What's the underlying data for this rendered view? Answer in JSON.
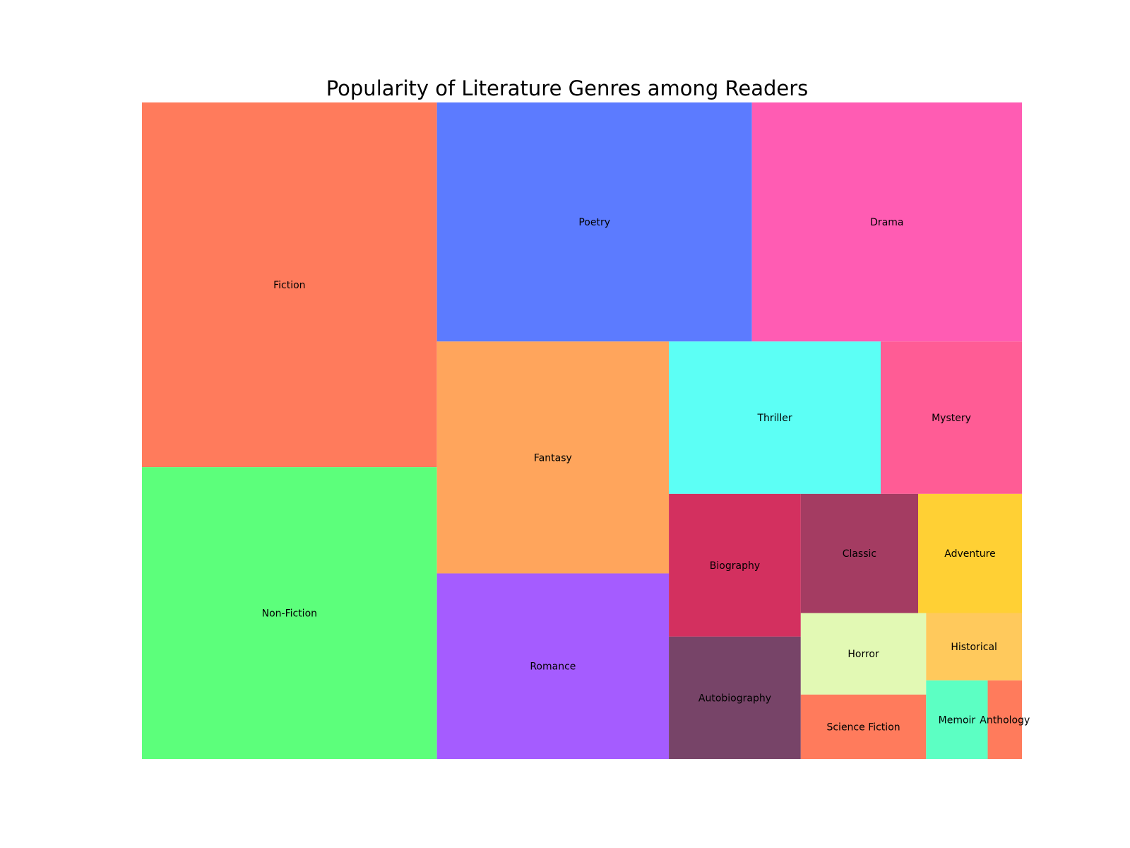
{
  "chart_data": {
    "type": "treemap",
    "title": "Popularity of Literature Genres among Readers",
    "cells": [
      {
        "label": "Fiction",
        "value": 20,
        "color": "#ff7b5c"
      },
      {
        "label": "Non-Fiction",
        "value": 16,
        "color": "#5cff7b"
      },
      {
        "label": "Poetry",
        "value": 14,
        "color": "#5c7bff"
      },
      {
        "label": "Drama",
        "value": 12,
        "color": "#ff5cb3"
      },
      {
        "label": "Fantasy",
        "value": 10,
        "color": "#ffa55c"
      },
      {
        "label": "Romance",
        "value": 8,
        "color": "#a55cff"
      },
      {
        "label": "Thriller",
        "value": 6,
        "color": "#5cfff5"
      },
      {
        "label": "Mystery",
        "value": 4,
        "color": "#ff5c95"
      },
      {
        "label": "Biography",
        "value": 3.5,
        "color": "#d3305f"
      },
      {
        "label": "Autobiography",
        "value": 3,
        "color": "#774468"
      },
      {
        "label": "Classic",
        "value": 2.6,
        "color": "#a43c62"
      },
      {
        "label": "Adventure",
        "value": 2.3,
        "color": "#ffd034"
      },
      {
        "label": "Horror",
        "value": 1.9,
        "color": "#e2f9b4"
      },
      {
        "label": "Science Fiction",
        "value": 1.5,
        "color": "#ff7b5c"
      },
      {
        "label": "Historical",
        "value": 1.2,
        "color": "#ffc95c"
      },
      {
        "label": "Memoir",
        "value": 0.9,
        "color": "#5cffc3"
      },
      {
        "label": "Anthology",
        "value": 0.5,
        "color": "#ff7b5c"
      }
    ]
  }
}
